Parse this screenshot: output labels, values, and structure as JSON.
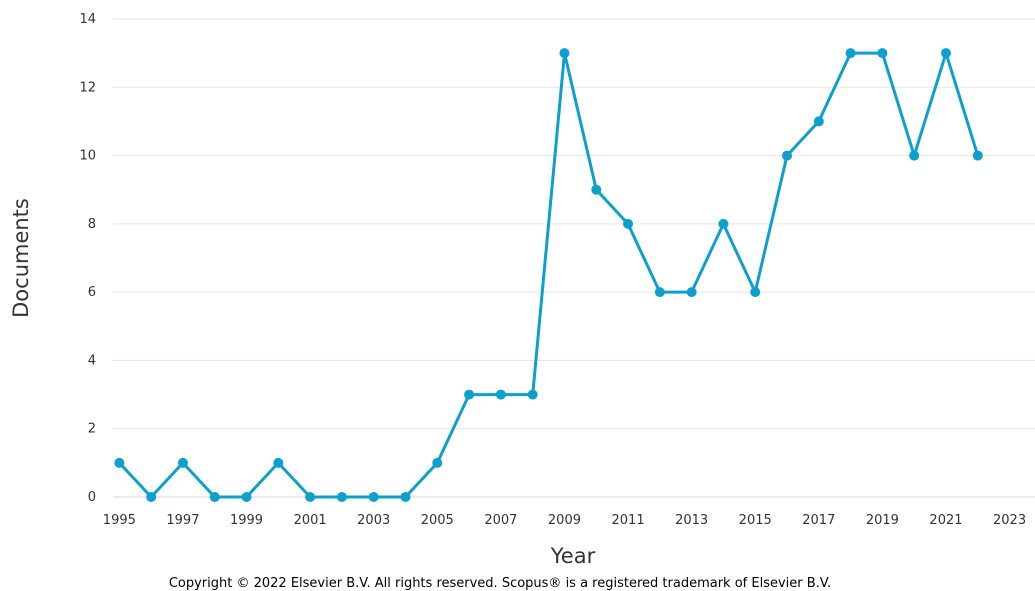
{
  "chart_data": {
    "type": "line",
    "title": "",
    "xlabel": "Year",
    "ylabel": "Documents",
    "xlim": [
      1994.8,
      2023.8
    ],
    "ylim": [
      0,
      14
    ],
    "x_ticks": [
      "1995",
      "1997",
      "1999",
      "2001",
      "2003",
      "2005",
      "2007",
      "2009",
      "2011",
      "2013",
      "2015",
      "2017",
      "2019",
      "2021",
      "2023"
    ],
    "y_ticks": [
      "0",
      "2",
      "4",
      "6",
      "8",
      "10",
      "12",
      "14"
    ],
    "grid": true,
    "series": [
      {
        "x": [
          1995,
          1996,
          1997,
          1998,
          1999,
          2000,
          2001,
          2002,
          2003,
          2004,
          2005,
          2006,
          2007,
          2008,
          2009,
          2010,
          2011,
          2012,
          2013,
          2014,
          2015,
          2016,
          2017,
          2018,
          2019,
          2020,
          2021,
          2022
        ],
        "values": [
          1,
          0,
          1,
          0,
          0,
          1,
          0,
          0,
          0,
          0,
          1,
          3,
          3,
          3,
          13,
          9,
          8,
          6,
          6,
          8,
          6,
          10,
          11,
          13,
          13,
          10,
          13,
          10
        ],
        "color": "#0ea0cc"
      }
    ]
  },
  "footer": {
    "copyright": "Copyright © 2022 Elsevier B.V. All rights reserved. Scopus® is a registered trademark of Elsevier B.V."
  }
}
